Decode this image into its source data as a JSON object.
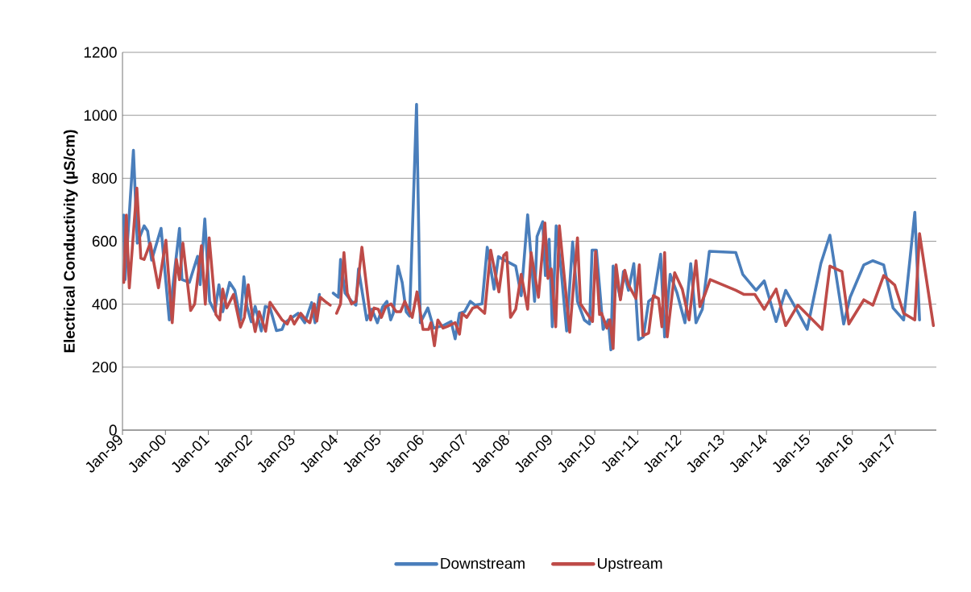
{
  "chart_data": {
    "type": "line",
    "ylabel": "Electrical Conductivity (µS/cm)",
    "xlim": [
      "1999-01-01",
      "2017-12-16"
    ],
    "ylim": [
      0,
      1200
    ],
    "yticks": [
      0,
      200,
      400,
      600,
      800,
      1000,
      1200
    ],
    "xticks": [
      {
        "value": "1999-01-01",
        "label": "Jan-99"
      },
      {
        "value": "2000-01-01",
        "label": "Jan-00"
      },
      {
        "value": "2001-01-01",
        "label": "Jan-01"
      },
      {
        "value": "2002-01-01",
        "label": "Jan-02"
      },
      {
        "value": "2003-01-01",
        "label": "Jan-03"
      },
      {
        "value": "2004-01-01",
        "label": "Jan-04"
      },
      {
        "value": "2005-01-01",
        "label": "Jan-05"
      },
      {
        "value": "2006-01-01",
        "label": "Jan-06"
      },
      {
        "value": "2007-01-01",
        "label": "Jan-07"
      },
      {
        "value": "2008-01-01",
        "label": "Jan-08"
      },
      {
        "value": "2009-01-01",
        "label": "Jan-09"
      },
      {
        "value": "2010-01-01",
        "label": "Jan-10"
      },
      {
        "value": "2011-01-01",
        "label": "Jan-11"
      },
      {
        "value": "2012-01-01",
        "label": "Jan-12"
      },
      {
        "value": "2013-01-01",
        "label": "Jan-13"
      },
      {
        "value": "2014-01-01",
        "label": "Jan-14"
      },
      {
        "value": "2015-01-01",
        "label": "Jan-15"
      },
      {
        "value": "2016-01-01",
        "label": "Jan-16"
      },
      {
        "value": "2017-01-01",
        "label": "Jan-17"
      }
    ],
    "grid": "y",
    "legend": "bottom",
    "marker": "none",
    "line_style": "solid",
    "series": [
      {
        "name": "Downstream",
        "color": "#4a7ebb",
        "x": [
          "1999-01-12",
          "1999-01-23",
          "1999-04-04",
          "1999-05-07",
          "1999-07-04",
          "1999-08-03",
          "1999-09-06",
          "1999-11-25",
          "2000-02-03",
          "2000-03-06",
          "2000-04-30",
          "2000-05-21",
          "2000-07-23",
          "2000-10-01",
          "2000-10-23",
          "2000-12-02",
          "2001-01-12",
          "2001-02-25",
          "2001-04-01",
          "2001-05-03",
          "2001-07-01",
          "2001-08-14",
          "2001-10-01",
          "2001-10-30",
          "2001-11-25",
          "2002-01-01",
          "2002-02-03",
          "2002-03-27",
          "2002-04-30",
          "2002-06-09",
          "2002-08-03",
          "2002-09-20",
          "2002-10-12",
          "2003-02-03",
          "2003-04-01",
          "2003-05-29",
          "2003-06-27",
          "2003-08-03",
          "2003-10-01",
          "2003-11-29",
          "2004-01-12",
          "2004-01-30",
          "2004-03-09",
          "2004-05-03",
          "2004-06-09",
          "2004-07-01",
          "2004-09-09",
          "2004-10-23",
          "2004-12-09",
          "2005-01-23",
          "2005-02-28",
          "2005-04-01",
          "2005-04-23",
          "2005-06-02",
          "2005-07-08",
          "2005-08-11",
          "2005-09-09",
          "2005-11-07",
          "2005-12-09",
          "2006-02-11",
          "2006-04-01",
          "2006-06-20",
          "2006-08-28",
          "2006-10-01",
          "2006-11-07",
          "2006-12-20",
          "2007-02-07",
          "2007-03-20",
          "2007-05-18",
          "2007-07-01",
          "2007-08-28",
          "2007-10-04",
          "2007-10-26",
          "2008-02-28",
          "2008-04-15",
          "2008-06-09",
          "2008-08-07",
          "2008-08-28",
          "2008-10-15",
          "2008-11-07",
          "2008-12-09",
          "2009-01-05",
          "2009-02-07",
          "2009-03-20",
          "2009-05-07",
          "2009-06-27",
          "2009-08-07",
          "2009-10-04",
          "2009-11-18",
          "2009-12-09",
          "2010-01-15",
          "2010-03-13",
          "2010-04-26",
          "2010-05-18",
          "2010-06-06",
          "2010-08-07",
          "2010-09-02",
          "2010-10-15",
          "2010-11-29",
          "2011-01-08",
          "2011-02-18",
          "2011-04-04",
          "2011-05-18",
          "2011-07-15",
          "2011-08-18",
          "2011-10-04",
          "2011-12-02",
          "2012-02-07",
          "2012-03-27",
          "2012-05-11",
          "2012-07-04",
          "2012-09-02",
          "2013-04-15",
          "2013-06-13",
          "2013-10-04",
          "2013-12-13",
          "2014-03-24",
          "2014-06-13",
          "2014-09-24",
          "2014-12-13",
          "2015-04-08",
          "2015-06-24",
          "2015-10-19",
          "2015-12-13",
          "2016-04-08",
          "2016-06-24",
          "2016-09-24",
          "2016-12-13",
          "2017-03-13",
          "2017-06-16",
          "2017-07-26"
        ],
        "values": [
          683,
          478,
          889,
          594,
          649,
          632,
          540,
          641,
          350,
          462,
          641,
          478,
          469,
          552,
          462,
          671,
          409,
          376,
          462,
          376,
          469,
          444,
          350,
          487,
          393,
          344,
          393,
          315,
          393,
          389,
          316,
          320,
          341,
          371,
          341,
          405,
          341,
          431,
          null,
          435,
          422,
          542,
          435,
          409,
          397,
          512,
          350,
          384,
          341,
          392,
          409,
          350,
          371,
          521,
          469,
          376,
          362,
          1035,
          341,
          388,
          324,
          332,
          345,
          290,
          371,
          376,
          409,
          397,
          401,
          581,
          448,
          551,
          546,
          521,
          427,
          684,
          409,
          615,
          662,
          491,
          606,
          328,
          649,
          512,
          315,
          598,
          409,
          350,
          337,
          572,
          572,
          320,
          350,
          255,
          521,
          418,
          504,
          444,
          529,
          287,
          296,
          409,
          422,
          559,
          296,
          495,
          435,
          341,
          529,
          341,
          384,
          568,
          564,
          495,
          444,
          474,
          345,
          444,
          376,
          320,
          529,
          619,
          337,
          422,
          525,
          538,
          525,
          388,
          350,
          692,
          350
        ]
      },
      {
        "name": "Upstream",
        "color": "#be4b48",
        "x": [
          "1999-01-12",
          "1999-02-03",
          "1999-02-28",
          "1999-05-03",
          "1999-06-06",
          "1999-07-04",
          "1999-08-25",
          "1999-11-03",
          "2000-01-05",
          "2000-02-28",
          "2000-04-04",
          "2000-04-30",
          "2000-05-29",
          "2000-08-03",
          "2000-09-06",
          "2000-11-03",
          "2000-12-06",
          "2001-01-08",
          "2001-03-06",
          "2001-04-08",
          "2001-05-03",
          "2001-06-06",
          "2001-08-03",
          "2001-10-01",
          "2001-11-03",
          "2001-12-06",
          "2002-01-12",
          "2002-02-03",
          "2002-03-09",
          "2002-05-03",
          "2002-06-09",
          "2002-09-20",
          "2002-11-03",
          "2002-12-02",
          "2003-01-01",
          "2003-02-25",
          "2003-04-12",
          "2003-05-14",
          "2003-06-20",
          "2003-07-12",
          "2003-08-11",
          "2003-09-20",
          "2003-11-03",
          "2003-12-02",
          "2003-12-27",
          "2004-01-30",
          "2004-02-28",
          "2004-03-27",
          "2004-05-03",
          "2004-06-09",
          "2004-07-30",
          "2004-10-12",
          "2004-11-11",
          "2004-12-17",
          "2005-01-12",
          "2005-02-18",
          "2005-04-04",
          "2005-05-18",
          "2005-06-24",
          "2005-07-30",
          "2005-10-01",
          "2005-11-11",
          "2006-01-01",
          "2006-02-18",
          "2006-03-09",
          "2006-04-08",
          "2006-05-07",
          "2006-06-20",
          "2006-07-26",
          "2006-10-01",
          "2006-11-07",
          "2006-11-29",
          "2007-01-08",
          "2007-02-28",
          "2007-04-08",
          "2007-06-09",
          "2007-07-30",
          "2007-10-08",
          "2007-11-18",
          "2007-12-13",
          "2008-01-15",
          "2008-02-28",
          "2008-04-15",
          "2008-06-09",
          "2008-07-08",
          "2008-09-09",
          "2008-11-03",
          "2008-11-29",
          "2008-12-27",
          "2009-02-03",
          "2009-03-06",
          "2009-06-02",
          "2009-08-07",
          "2009-09-02",
          "2009-12-13",
          "2010-01-08",
          "2010-02-11",
          "2010-02-28",
          "2010-04-15",
          "2010-05-11",
          "2010-06-06",
          "2010-07-01",
          "2010-08-07",
          "2010-09-13",
          "2010-10-15",
          "2010-12-17",
          "2011-01-15",
          "2011-02-14",
          "2011-04-04",
          "2011-05-14",
          "2011-06-27",
          "2011-07-26",
          "2011-08-18",
          "2011-09-09",
          "2011-11-11",
          "2011-12-09",
          "2012-01-15",
          "2012-03-13",
          "2012-05-11",
          "2012-06-13",
          "2012-07-30",
          "2012-09-09",
          "2013-04-15",
          "2013-06-24",
          "2013-09-24",
          "2013-12-13",
          "2014-03-24",
          "2014-06-13",
          "2014-09-24",
          "2015-04-19",
          "2015-06-24",
          "2015-10-04",
          "2015-12-02",
          "2016-04-08",
          "2016-06-24",
          "2016-09-24",
          "2016-12-27",
          "2017-03-13",
          "2017-06-16",
          "2017-07-26",
          "2017-11-21"
        ],
        "values": [
          469,
          683,
          452,
          769,
          546,
          542,
          594,
          452,
          603,
          341,
          542,
          478,
          594,
          380,
          400,
          586,
          400,
          611,
          367,
          350,
          448,
          388,
          431,
          327,
          358,
          462,
          358,
          313,
          376,
          314,
          406,
          350,
          337,
          362,
          337,
          371,
          350,
          341,
          401,
          346,
          422,
          409,
          397,
          null,
          371,
          401,
          564,
          435,
          401,
          409,
          581,
          350,
          388,
          384,
          358,
          392,
          401,
          376,
          376,
          409,
          358,
          439,
          320,
          320,
          341,
          268,
          350,
          324,
          329,
          341,
          305,
          371,
          358,
          388,
          392,
          371,
          572,
          439,
          555,
          564,
          358,
          384,
          495,
          384,
          564,
          422,
          658,
          482,
          512,
          328,
          649,
          311,
          611,
          401,
          345,
          568,
          367,
          371,
          324,
          350,
          259,
          525,
          414,
          508,
          461,
          418,
          525,
          300,
          308,
          427,
          418,
          328,
          564,
          296,
          500,
          478,
          448,
          350,
          538,
          392,
          435,
          478,
          444,
          431,
          431,
          384,
          448,
          332,
          397,
          320,
          521,
          504,
          337,
          414,
          397,
          491,
          461,
          371,
          350,
          624,
          332
        ]
      }
    ]
  }
}
